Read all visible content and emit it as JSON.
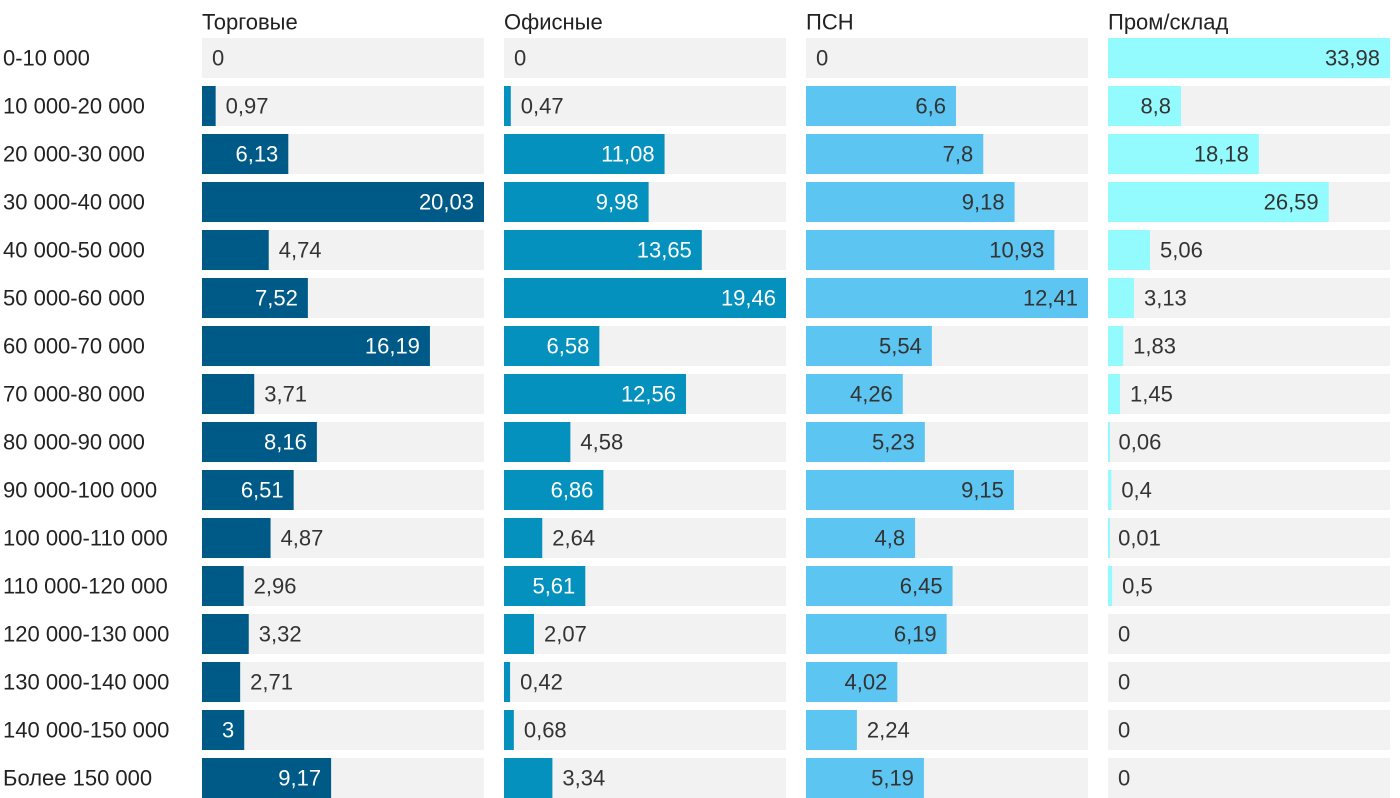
{
  "chart_data": {
    "type": "bar",
    "orientation": "horizontal",
    "layout": "small-multiples",
    "categories": [
      "0-10 000",
      "10 000-20 000",
      "20 000-30 000",
      "30 000-40 000",
      "40 000-50 000",
      "50 000-60 000",
      "60 000-70 000",
      "70 000-80 000",
      "80 000-90 000",
      "90 000-100 000",
      "100 000-110 000",
      "110 000-120 000",
      "120 000-130 000",
      "130 000-140 000",
      "140 000-150 000",
      "Более 150 000"
    ],
    "series": [
      {
        "name": "Торговые",
        "color": "#005a87",
        "track": "#f2f2f2",
        "max": 20.03,
        "values": [
          0,
          0.97,
          6.13,
          20.03,
          4.74,
          7.52,
          16.19,
          3.71,
          8.16,
          6.51,
          4.87,
          2.96,
          3.32,
          2.71,
          3,
          9.17
        ],
        "labels": [
          "0",
          "0,97",
          "6,13",
          "20,03",
          "4,74",
          "7,52",
          "16,19",
          "3,71",
          "8,16",
          "6,51",
          "4,87",
          "2,96",
          "3,32",
          "2,71",
          "3",
          "9,17"
        ]
      },
      {
        "name": "Офисные",
        "color": "#0591be",
        "track": "#f2f2f2",
        "max": 19.46,
        "values": [
          0,
          0.47,
          11.08,
          9.98,
          13.65,
          19.46,
          6.58,
          12.56,
          4.58,
          6.86,
          2.64,
          5.61,
          2.07,
          0.42,
          0.68,
          3.34
        ],
        "labels": [
          "0",
          "0,47",
          "11,08",
          "9,98",
          "13,65",
          "19,46",
          "6,58",
          "12,56",
          "4,58",
          "6,86",
          "2,64",
          "5,61",
          "2,07",
          "0,42",
          "0,68",
          "3,34"
        ]
      },
      {
        "name": "ПСН",
        "color": "#5dc5f1",
        "track": "#f2f2f2",
        "max": 12.41,
        "values": [
          0,
          6.6,
          7.8,
          9.18,
          10.93,
          12.41,
          5.54,
          4.26,
          5.23,
          9.15,
          4.8,
          6.45,
          6.19,
          4.02,
          2.24,
          5.19
        ],
        "labels": [
          "0",
          "6,6",
          "7,8",
          "9,18",
          "10,93",
          "12,41",
          "5,54",
          "4,26",
          "5,23",
          "9,15",
          "4,8",
          "6,45",
          "6,19",
          "4,02",
          "2,24",
          "5,19"
        ]
      },
      {
        "name": "Пром/склад",
        "color": "#93fbfd",
        "track": "#f2f2f2",
        "max": 33.98,
        "values": [
          33.98,
          8.8,
          18.18,
          26.59,
          5.06,
          3.13,
          1.83,
          1.45,
          0.06,
          0.4,
          0.01,
          0.5,
          0,
          0,
          0,
          0
        ],
        "labels": [
          "33,98",
          "8,8",
          "18,18",
          "26,59",
          "5,06",
          "3,13",
          "1,83",
          "1,45",
          "0,06",
          "0,4",
          "0,01",
          "0,5",
          "0",
          "0",
          "0",
          "0"
        ]
      }
    ],
    "label_colors": {
      "inside_dark": "#ffffff",
      "inside_light": "#333333",
      "outside": "#333333"
    },
    "title": "",
    "xlabel": "",
    "ylabel": "",
    "grid": false,
    "legend": "column headers"
  }
}
